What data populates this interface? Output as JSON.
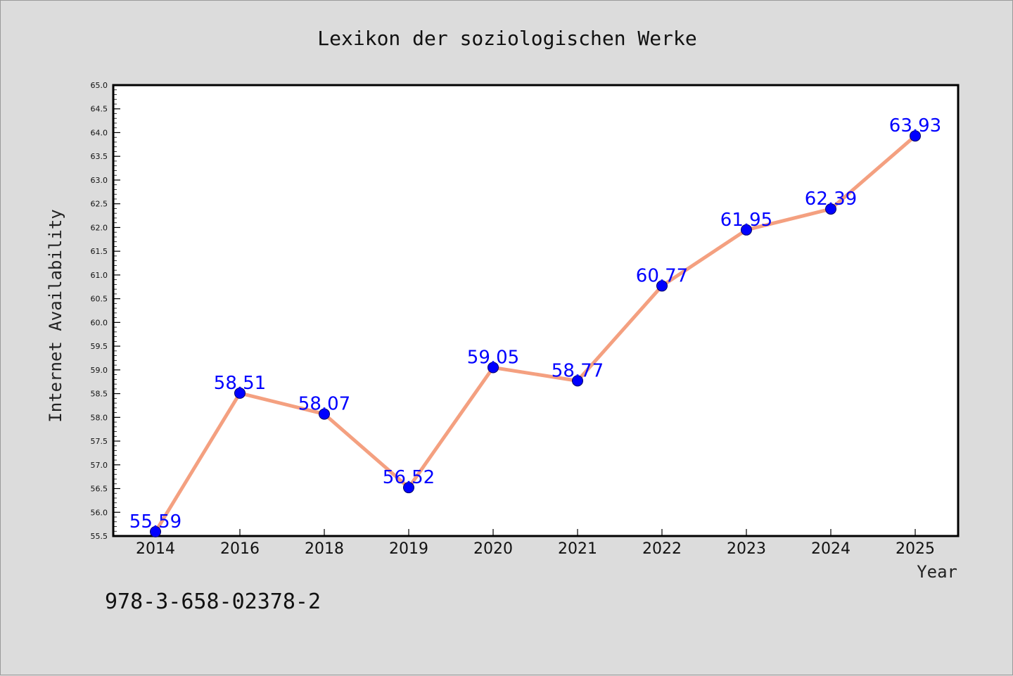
{
  "chart_data": {
    "type": "line",
    "title": "Lexikon der soziologischen Werke",
    "xlabel": "Year",
    "ylabel": "Internet Availability",
    "categories": [
      "2014",
      "2016",
      "2018",
      "2019",
      "2020",
      "2021",
      "2022",
      "2023",
      "2024",
      "2025"
    ],
    "series": [
      {
        "values": [
          55.59,
          58.51,
          58.07,
          56.52,
          59.05,
          58.77,
          60.77,
          61.95,
          62.39,
          63.93
        ],
        "line_color": "#f4a080",
        "marker_color": "#0000ff"
      }
    ],
    "data_labels": [
      "55.59",
      "58.51",
      "58.07",
      "56.52",
      "59.05",
      "58.77",
      "60.77",
      "61.95",
      "62.39",
      "63.93"
    ],
    "ylim": [
      55.5,
      65.0
    ],
    "yticks": [
      "55.5",
      "56.0",
      "56.5",
      "57.0",
      "57.5",
      "58.0",
      "58.5",
      "59.0",
      "59.5",
      "60.0",
      "60.5",
      "61.0",
      "61.5",
      "62.0",
      "62.5",
      "63.0",
      "63.5",
      "64.0",
      "64.5",
      "65.0"
    ],
    "grid": false,
    "legend": "none"
  },
  "footer": {
    "isbn": "978-3-658-02378-2"
  }
}
